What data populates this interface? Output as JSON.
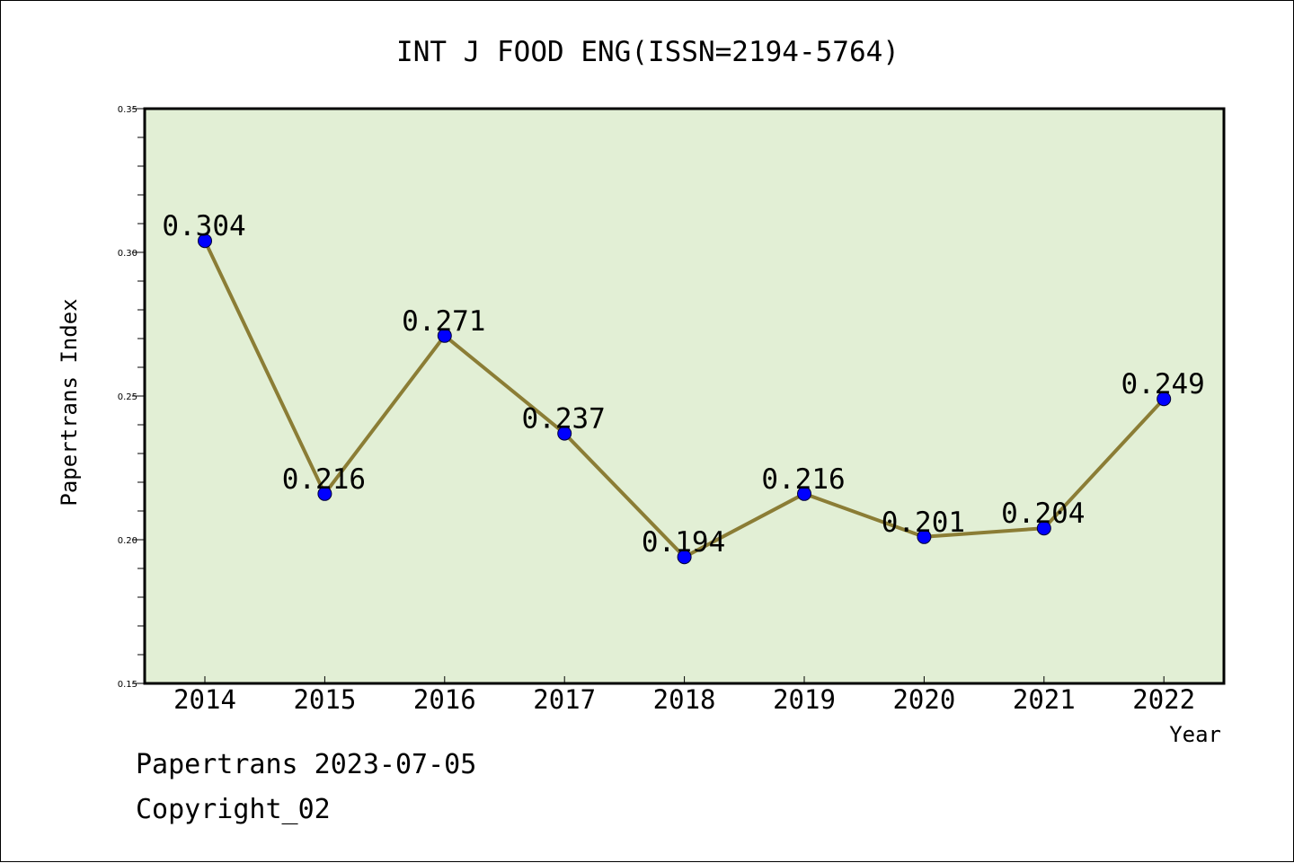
{
  "chart_data": {
    "type": "line",
    "title": "INT J FOOD ENG(ISSN=2194-5764)",
    "xlabel": "Year",
    "ylabel": "Papertrans Index",
    "categories": [
      "2014",
      "2015",
      "2016",
      "2017",
      "2018",
      "2019",
      "2020",
      "2021",
      "2022"
    ],
    "series": [
      {
        "values": [
          0.304,
          0.216,
          0.271,
          0.237,
          0.194,
          0.216,
          0.201,
          0.204,
          0.249
        ],
        "data_labels": [
          "0.304",
          "0.216",
          "0.271",
          "0.237",
          "0.194",
          "0.216",
          "0.201",
          "0.204",
          "0.249"
        ],
        "line_color": "#8b7d35",
        "marker_color": "#0000ff"
      }
    ],
    "ylim": [
      0.15,
      0.35
    ],
    "yticks": [
      0.15,
      0.2,
      0.25,
      0.3,
      0.35
    ],
    "ytick_labels": [
      "0.15",
      "0.20",
      "0.25",
      "0.30",
      "0.35"
    ],
    "grid": false,
    "legend": "none",
    "plot_background": "#e2efd5"
  },
  "footer": {
    "line1": "Papertrans 2023-07-05",
    "line2": "Copyright_02"
  }
}
